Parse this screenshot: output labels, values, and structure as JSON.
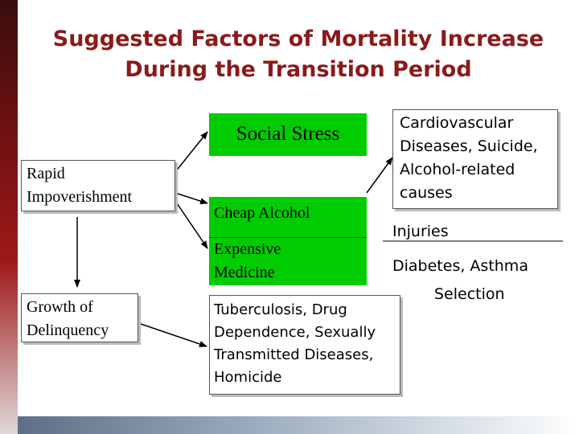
{
  "title": {
    "line1": "Suggested Factors of Mortality Increase",
    "line2": "During the Transition Period"
  },
  "nodes": {
    "social_stress": "Social Stress",
    "rapid_impoverishment": {
      "line1": "Rapid",
      "line2": "Impoverishment"
    },
    "cheap_alcohol": "Cheap Alcohol",
    "expensive_medicine": {
      "line1": "Expensive",
      "line2": "Medicine"
    },
    "growth_delinquency": {
      "line1": "Growth of",
      "line2": "Delinquency"
    },
    "cardiovascular": {
      "line1": "Cardiovascular",
      "line2": "Diseases, Suicide,",
      "line3": "Alcohol-related",
      "line4": "causes"
    },
    "injuries": "Injuries",
    "diabetes_asthma": "Diabetes, Asthma",
    "selection": "Selection",
    "tuberculosis": {
      "line1": "Tuberculosis, Drug",
      "line2": "Dependence, Sexually",
      "line3": "Transmitted Diseases,",
      "line4": "Homicide"
    }
  },
  "colors": {
    "title": "#8b1a1a",
    "green": "#00cc00",
    "arrow": "#000000"
  }
}
